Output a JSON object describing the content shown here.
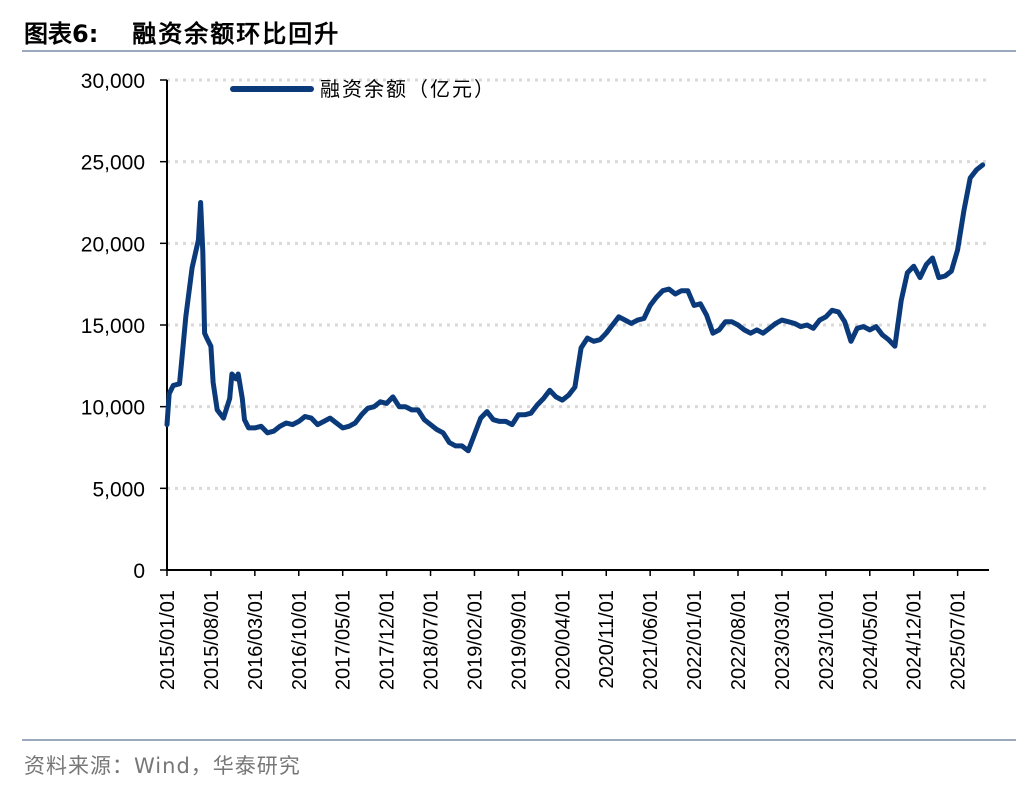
{
  "figure": {
    "label": "图表6:",
    "title": "融资余额环比回升",
    "source": "资料来源：Wind，华泰研究"
  },
  "colors": {
    "series": "#0a3a7a",
    "rule": "#9aa9bd",
    "grid": "#d9d9d9"
  },
  "chart_data": {
    "type": "line",
    "legend_position": "top-left",
    "grid": true,
    "ylim": [
      0,
      30000
    ],
    "yticks": [
      0,
      5000,
      10000,
      15000,
      20000,
      25000,
      30000
    ],
    "ytick_labels": [
      "0",
      "5,000",
      "10,000",
      "15,000",
      "20,000",
      "25,000",
      "30,000"
    ],
    "xlim": [
      "2015-01",
      "2025-12"
    ],
    "xticks": [
      "2015-01",
      "2015-08",
      "2016-03",
      "2016-10",
      "2017-05",
      "2017-12",
      "2018-07",
      "2019-02",
      "2019-09",
      "2020-04",
      "2020-11",
      "2021-06",
      "2022-01",
      "2022-08",
      "2023-03",
      "2023-10",
      "2024-05",
      "2024-12",
      "2025-07"
    ],
    "xtick_labels": [
      "2015/01/01",
      "2015/08/01",
      "2016/03/01",
      "2016/10/01",
      "2017/05/01",
      "2017/12/01",
      "2018/07/01",
      "2019/02/01",
      "2019/09/01",
      "2020/04/01",
      "2020/11/01",
      "2021/06/01",
      "2022/01/01",
      "2022/08/01",
      "2023/03/01",
      "2023/10/01",
      "2024/05/01",
      "2024/12/01",
      "2025/07/01"
    ],
    "series": [
      {
        "name": "融资余额（亿元）",
        "points": [
          [
            "2015-01",
            8900
          ],
          [
            "2015-01",
            10800
          ],
          [
            "2015-02",
            11300
          ],
          [
            "2015-03",
            11400
          ],
          [
            "2015-03",
            12800
          ],
          [
            "2015-04",
            15500
          ],
          [
            "2015-05",
            18500
          ],
          [
            "2015-06",
            20200
          ],
          [
            "2015-06",
            22500
          ],
          [
            "2015-06",
            19500
          ],
          [
            "2015-07",
            14500
          ],
          [
            "2015-07",
            14200
          ],
          [
            "2015-08",
            13700
          ],
          [
            "2015-08",
            11500
          ],
          [
            "2015-09",
            9800
          ],
          [
            "2015-10",
            9300
          ],
          [
            "2015-11",
            10500
          ],
          [
            "2015-11",
            12000
          ],
          [
            "2015-12",
            11700
          ],
          [
            "2015-12",
            12000
          ],
          [
            "2016-01",
            10500
          ],
          [
            "2016-01",
            9200
          ],
          [
            "2016-02",
            8700
          ],
          [
            "2016-03",
            8700
          ],
          [
            "2016-04",
            8800
          ],
          [
            "2016-05",
            8400
          ],
          [
            "2016-06",
            8500
          ],
          [
            "2016-07",
            8800
          ],
          [
            "2016-08",
            9000
          ],
          [
            "2016-09",
            8900
          ],
          [
            "2016-10",
            9100
          ],
          [
            "2016-11",
            9400
          ],
          [
            "2016-12",
            9300
          ],
          [
            "2017-01",
            8900
          ],
          [
            "2017-02",
            9100
          ],
          [
            "2017-03",
            9300
          ],
          [
            "2017-04",
            9000
          ],
          [
            "2017-05",
            8700
          ],
          [
            "2017-06",
            8800
          ],
          [
            "2017-07",
            9000
          ],
          [
            "2017-08",
            9500
          ],
          [
            "2017-09",
            9900
          ],
          [
            "2017-10",
            10000
          ],
          [
            "2017-11",
            10300
          ],
          [
            "2017-12",
            10200
          ],
          [
            "2018-01",
            10600
          ],
          [
            "2018-02",
            10000
          ],
          [
            "2018-03",
            10000
          ],
          [
            "2018-04",
            9800
          ],
          [
            "2018-05",
            9800
          ],
          [
            "2018-06",
            9200
          ],
          [
            "2018-07",
            8900
          ],
          [
            "2018-08",
            8600
          ],
          [
            "2018-09",
            8400
          ],
          [
            "2018-10",
            7800
          ],
          [
            "2018-11",
            7600
          ],
          [
            "2018-12",
            7600
          ],
          [
            "2019-01",
            7300
          ],
          [
            "2019-02",
            8300
          ],
          [
            "2019-03",
            9300
          ],
          [
            "2019-04",
            9700
          ],
          [
            "2019-05",
            9200
          ],
          [
            "2019-06",
            9100
          ],
          [
            "2019-07",
            9100
          ],
          [
            "2019-08",
            8900
          ],
          [
            "2019-09",
            9500
          ],
          [
            "2019-10",
            9500
          ],
          [
            "2019-11",
            9600
          ],
          [
            "2019-12",
            10100
          ],
          [
            "2020-01",
            10500
          ],
          [
            "2020-02",
            11000
          ],
          [
            "2020-03",
            10600
          ],
          [
            "2020-04",
            10400
          ],
          [
            "2020-05",
            10700
          ],
          [
            "2020-06",
            11200
          ],
          [
            "2020-07",
            13600
          ],
          [
            "2020-08",
            14200
          ],
          [
            "2020-09",
            14000
          ],
          [
            "2020-10",
            14100
          ],
          [
            "2020-11",
            14500
          ],
          [
            "2020-12",
            15000
          ],
          [
            "2021-01",
            15500
          ],
          [
            "2021-02",
            15300
          ],
          [
            "2021-03",
            15100
          ],
          [
            "2021-04",
            15300
          ],
          [
            "2021-05",
            15400
          ],
          [
            "2021-06",
            16200
          ],
          [
            "2021-07",
            16700
          ],
          [
            "2021-08",
            17100
          ],
          [
            "2021-09",
            17200
          ],
          [
            "2021-10",
            16900
          ],
          [
            "2021-11",
            17100
          ],
          [
            "2021-12",
            17100
          ],
          [
            "2022-01",
            16200
          ],
          [
            "2022-02",
            16300
          ],
          [
            "2022-03",
            15600
          ],
          [
            "2022-04",
            14500
          ],
          [
            "2022-05",
            14700
          ],
          [
            "2022-06",
            15200
          ],
          [
            "2022-07",
            15200
          ],
          [
            "2022-08",
            15000
          ],
          [
            "2022-09",
            14700
          ],
          [
            "2022-10",
            14500
          ],
          [
            "2022-11",
            14700
          ],
          [
            "2022-12",
            14500
          ],
          [
            "2023-01",
            14800
          ],
          [
            "2023-02",
            15100
          ],
          [
            "2023-03",
            15300
          ],
          [
            "2023-04",
            15200
          ],
          [
            "2023-05",
            15100
          ],
          [
            "2023-06",
            14900
          ],
          [
            "2023-07",
            15000
          ],
          [
            "2023-08",
            14800
          ],
          [
            "2023-09",
            15300
          ],
          [
            "2023-10",
            15500
          ],
          [
            "2023-11",
            15900
          ],
          [
            "2023-12",
            15800
          ],
          [
            "2024-01",
            15200
          ],
          [
            "2024-02",
            14000
          ],
          [
            "2024-03",
            14800
          ],
          [
            "2024-04",
            14900
          ],
          [
            "2024-05",
            14700
          ],
          [
            "2024-06",
            14900
          ],
          [
            "2024-07",
            14400
          ],
          [
            "2024-08",
            14100
          ],
          [
            "2024-09",
            13700
          ],
          [
            "2024-10",
            16500
          ],
          [
            "2024-11",
            18200
          ],
          [
            "2024-12",
            18600
          ],
          [
            "2025-01",
            17900
          ],
          [
            "2025-02",
            18700
          ],
          [
            "2025-03",
            19100
          ],
          [
            "2025-04",
            17900
          ],
          [
            "2025-05",
            18000
          ],
          [
            "2025-06",
            18300
          ],
          [
            "2025-07",
            19600
          ],
          [
            "2025-08",
            22000
          ],
          [
            "2025-09",
            24000
          ],
          [
            "2025-10",
            24500
          ],
          [
            "2025-11",
            24800
          ]
        ]
      }
    ]
  }
}
